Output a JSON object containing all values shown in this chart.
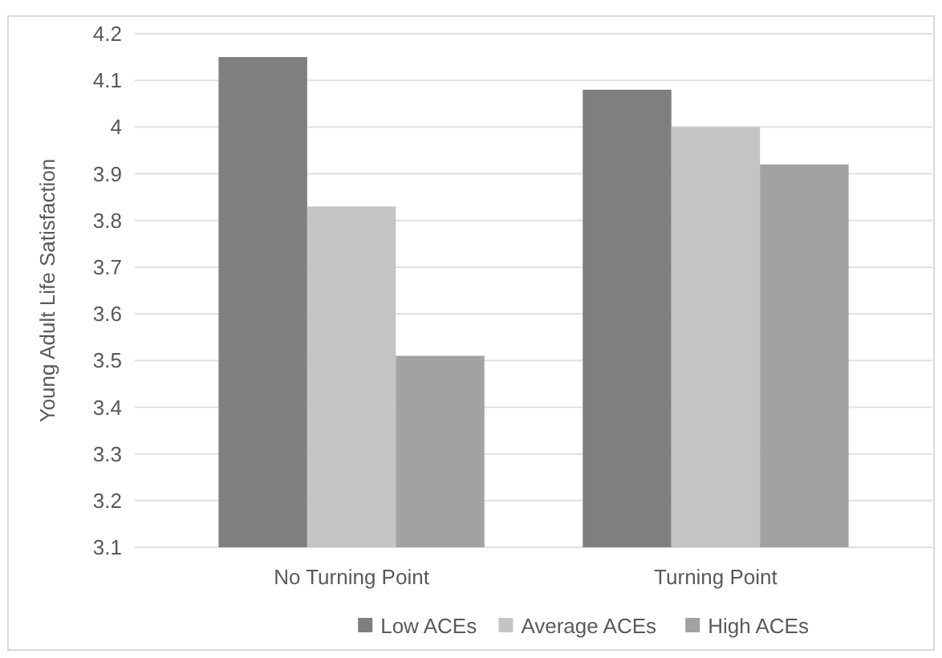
{
  "chart_data": {
    "type": "bar",
    "ylabel": "Young Adult Life Satisfaction",
    "categories": [
      "No Turning Point",
      "Turning Point"
    ],
    "series": [
      {
        "name": "Low ACEs",
        "color": "#7f7f7f",
        "values": [
          4.15,
          4.08
        ]
      },
      {
        "name": "Average ACEs",
        "color": "#c4c4c4",
        "values": [
          3.83,
          4.0
        ]
      },
      {
        "name": "High ACEs",
        "color": "#a2a2a2",
        "values": [
          3.51,
          3.92
        ]
      }
    ],
    "ylim": [
      3.1,
      4.2
    ],
    "yticks": [
      3.1,
      3.2,
      3.3,
      3.4,
      3.5,
      3.6,
      3.7,
      3.8,
      3.9,
      {
        "value": 4,
        "label": "4"
      },
      4.1,
      4.2
    ],
    "grid": "y",
    "legend": "bottom"
  }
}
